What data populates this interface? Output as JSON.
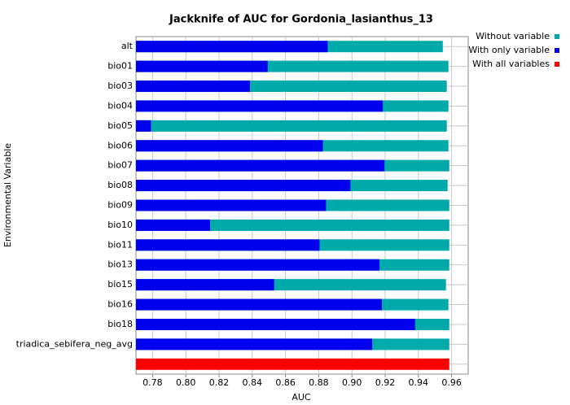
{
  "chart_data": {
    "type": "bar",
    "orientation": "horizontal",
    "title": "Jackknife of AUC for Gordonia_lasianthus_13",
    "x_label": "AUC",
    "y_label": "Environmental Variable",
    "categories": [
      "alt",
      "bio01",
      "bio03",
      "bio04",
      "bio05",
      "bio06",
      "bio07",
      "bio08",
      "bio09",
      "bio10",
      "bio11",
      "bio13",
      "bio15",
      "bio16",
      "bio18",
      "triadica_sebifera_neg_avg",
      null
    ],
    "series": [
      {
        "name": "Without variable",
        "color": "#00aaaa",
        "values": [
          0.9547,
          0.9581,
          0.9571,
          0.9581,
          0.9571,
          0.9581,
          0.9586,
          0.9576,
          0.9586,
          0.9586,
          0.9586,
          0.9586,
          0.9566,
          0.9581,
          0.9586,
          0.9586,
          null
        ]
      },
      {
        "name": "With only variable",
        "color": "#0000ee",
        "values": [
          0.8854,
          0.8493,
          0.8386,
          0.9186,
          0.779,
          0.8825,
          0.9196,
          0.8991,
          0.8844,
          0.8146,
          0.8805,
          0.9166,
          0.8532,
          0.918,
          0.938,
          0.9122,
          null
        ]
      },
      {
        "name": "With all variables",
        "color": "#ff0000",
        "values": [
          null,
          null,
          null,
          null,
          null,
          null,
          null,
          null,
          null,
          null,
          null,
          null,
          null,
          null,
          null,
          null,
          0.9586
        ]
      }
    ],
    "xlim": [
      0.77,
      0.97
    ],
    "xticks": [
      {
        "value": 0.78,
        "label": "0.78"
      },
      {
        "value": 0.8,
        "label": "0.80"
      },
      {
        "value": 0.82,
        "label": "0.82"
      },
      {
        "value": 0.84,
        "label": "0.84"
      },
      {
        "value": 0.86,
        "label": "0.86"
      },
      {
        "value": 0.88,
        "label": "0.88"
      },
      {
        "value": 0.9,
        "label": "0.90"
      },
      {
        "value": 0.92,
        "label": "0.92"
      },
      {
        "value": 0.94,
        "label": "0.94"
      },
      {
        "value": 0.96,
        "label": "0.96"
      }
    ],
    "grid": true,
    "legend": "top-right"
  }
}
